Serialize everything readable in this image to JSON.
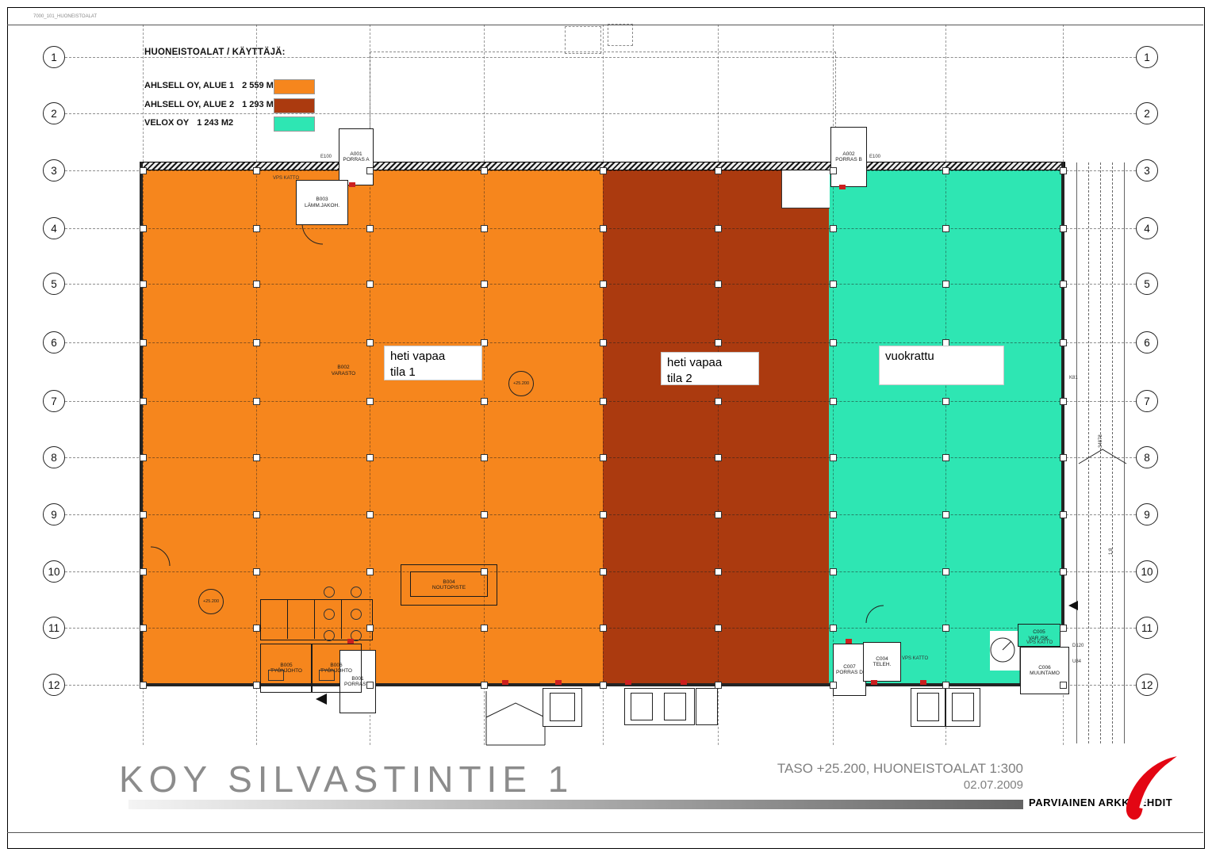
{
  "meta": {
    "drawing_code": "7000_101_HUONEISTOALAT"
  },
  "legend": {
    "title": "HUONEISTOALAT / KÄYTTÄJÄ:",
    "items": [
      {
        "label": "AHLSELL OY, ALUE 1",
        "area": "2 559 M2",
        "color": "#F6861D"
      },
      {
        "label": "AHLSELL OY, ALUE 2",
        "area": "1 293 M2",
        "color": "#AB3A0F"
      },
      {
        "label": "VELOX OY",
        "area": "1 243 M2",
        "color": "#2EE6B3"
      }
    ]
  },
  "grid": {
    "rows": [
      "1",
      "2",
      "3",
      "4",
      "5",
      "6",
      "7",
      "8",
      "9",
      "10",
      "11",
      "12"
    ]
  },
  "zones": {
    "ahlsell1": {
      "color": "#F6861D",
      "label1": "heti vapaa",
      "label2": "tila 1"
    },
    "ahlsell2": {
      "color": "#AB3A0F",
      "label1": "heti vapaa",
      "label2": "tila 2"
    },
    "velox": {
      "color": "#2EE6B3",
      "label1": "vuokrattu"
    }
  },
  "rooms": {
    "a001": {
      "line1": "A001",
      "line2": "PORRAS A"
    },
    "a002": {
      "line1": "A002",
      "line2": "PORRAS B"
    },
    "b001": {
      "line1": "B001",
      "line2": "PORRAS C"
    },
    "b002": {
      "line1": "B002",
      "line2": "VARASTO"
    },
    "b003": {
      "line1": "B003",
      "line2": "LÄMM.JAKOH."
    },
    "b004": {
      "line1": "B004",
      "line2": "NOUTOPISTE"
    },
    "b005": {
      "line1": "B005",
      "line2": "TYÖNJOHTO"
    },
    "b006": {
      "line1": "B006",
      "line2": "TYÖNJOHTO"
    },
    "c004": {
      "line1": "C004",
      "line2": "TELEH."
    },
    "c005": {
      "line1": "C005",
      "line2": "VAR./SK."
    },
    "c006": {
      "line1": "C006",
      "line2": "MUUNTAMO"
    },
    "c007": {
      "line1": "C007",
      "line2": "PORRAS D"
    }
  },
  "annotations": {
    "level_marker": "+25.200",
    "ramp_dimension": "34878",
    "ramp_slope": "1:8",
    "code_k81": "K81",
    "code_e100": "E100",
    "code_d120": "D120",
    "code_u84": "U84",
    "vps_katto": "VPS KATTO"
  },
  "titleblock": {
    "project_title": "KOY SILVASTINTIE 1",
    "sheet_info": "TASO +25.200, HUONEISTOALAT  1:300",
    "date": "02.07.2009",
    "firm": "PARVIAINEN ARKKITEHDIT",
    "logo_color": "#E30613"
  }
}
